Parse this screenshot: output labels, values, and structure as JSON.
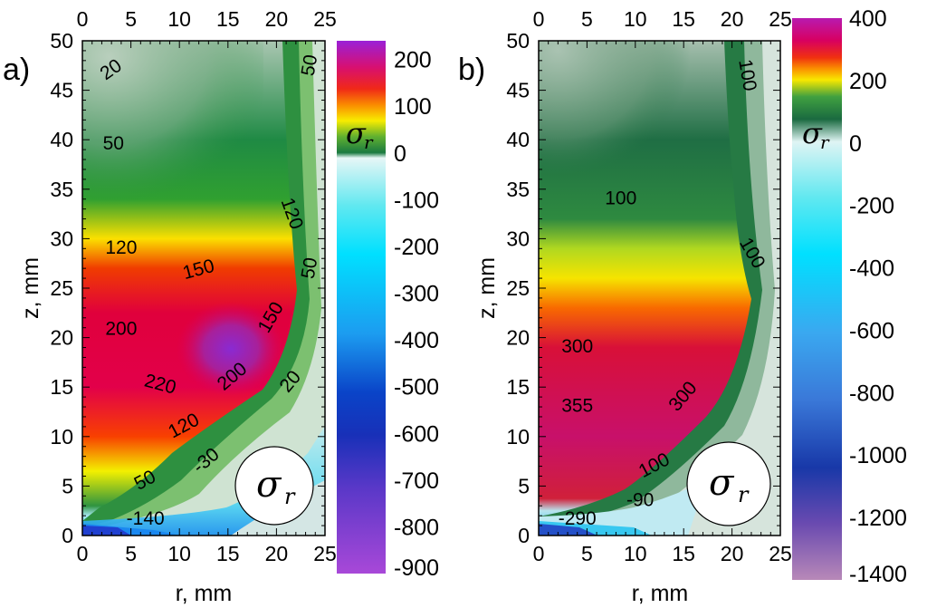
{
  "chart_data": [
    {
      "type": "heatmap",
      "panel_label": "a)",
      "xlabel": "r, mm",
      "ylabel": "z, mm",
      "x_ticks": [
        "0",
        "5",
        "10",
        "15",
        "20",
        "25"
      ],
      "y_ticks": [
        "0",
        "5",
        "10",
        "15",
        "20",
        "25",
        "30",
        "35",
        "40",
        "45",
        "50"
      ],
      "top_ticks": [
        "0",
        "5",
        "10",
        "15",
        "20",
        "25"
      ],
      "xlim": [
        0,
        25
      ],
      "ylim": [
        0,
        50
      ],
      "colorbar": {
        "range": [
          -900,
          240
        ],
        "ticks": [
          "200",
          "100",
          "0",
          "-100",
          "-200",
          "-300",
          "-400",
          "-500",
          "-600",
          "-700",
          "-800",
          "-900"
        ],
        "symbol": "σ",
        "subscript": "r"
      },
      "badge": {
        "symbol": "σ",
        "subscript": "r"
      },
      "contour_labels": [
        {
          "text": "20",
          "r": 3,
          "z": 47,
          "angle": -35
        },
        {
          "text": "50",
          "r": 3.2,
          "z": 39.5,
          "angle": 0
        },
        {
          "text": "120",
          "r": 4,
          "z": 29,
          "angle": 0
        },
        {
          "text": "150",
          "r": 12,
          "z": 26.8,
          "angle": -15
        },
        {
          "text": "200",
          "r": 4,
          "z": 20.8,
          "angle": 0
        },
        {
          "text": "220",
          "r": 8,
          "z": 15.2,
          "angle": 15
        },
        {
          "text": "200",
          "r": 15.5,
          "z": 16,
          "angle": -40
        },
        {
          "text": "150",
          "r": 19.5,
          "z": 22,
          "angle": -60
        },
        {
          "text": "120",
          "r": 21.5,
          "z": 32.5,
          "angle": 70
        },
        {
          "text": "50",
          "r": 23.5,
          "z": 47.5,
          "angle": -80
        },
        {
          "text": "50",
          "r": 23.5,
          "z": 27,
          "angle": -80
        },
        {
          "text": "20",
          "r": 21.5,
          "z": 15.5,
          "angle": -50
        },
        {
          "text": "120",
          "r": 10.5,
          "z": 11,
          "angle": -28
        },
        {
          "text": "-30",
          "r": 12.8,
          "z": 7.5,
          "angle": -40
        },
        {
          "text": "50",
          "r": 6.5,
          "z": 5.5,
          "angle": -28
        },
        {
          "text": "-140",
          "r": 6.5,
          "z": 1.6,
          "angle": 0
        }
      ]
    },
    {
      "type": "heatmap",
      "panel_label": "b)",
      "xlabel": "r, mm",
      "ylabel": "z, mm",
      "x_ticks": [
        "0",
        "5",
        "10",
        "15",
        "20",
        "25"
      ],
      "y_ticks": [
        "0",
        "5",
        "10",
        "15",
        "20",
        "25",
        "30",
        "35",
        "40",
        "45",
        "50"
      ],
      "top_ticks": [
        "0",
        "5",
        "10",
        "15",
        "20",
        "25"
      ],
      "xlim": [
        0,
        25
      ],
      "ylim": [
        0,
        50
      ],
      "colorbar": {
        "range": [
          -1400,
          400
        ],
        "ticks": [
          "400",
          "200",
          "0",
          "-200",
          "-400",
          "-600",
          "-800",
          "-1000",
          "-1200",
          "-1400"
        ],
        "symbol": "σ",
        "subscript": "r"
      },
      "badge": {
        "symbol": "σ",
        "subscript": "r"
      },
      "contour_labels": [
        {
          "text": "100",
          "r": 21.5,
          "z": 46.5,
          "angle": 80
        },
        {
          "text": "100",
          "r": 8.5,
          "z": 34,
          "angle": 0
        },
        {
          "text": "100",
          "r": 22,
          "z": 28.5,
          "angle": 60
        },
        {
          "text": "300",
          "r": 4,
          "z": 19,
          "angle": 0
        },
        {
          "text": "355",
          "r": 4,
          "z": 13,
          "angle": 0
        },
        {
          "text": "300",
          "r": 15,
          "z": 14,
          "angle": -50
        },
        {
          "text": "100",
          "r": 12,
          "z": 7,
          "angle": -28
        },
        {
          "text": "-90",
          "r": 10.5,
          "z": 3.5,
          "angle": 0
        },
        {
          "text": "-290",
          "r": 4,
          "z": 1.6,
          "angle": 0
        }
      ]
    }
  ]
}
